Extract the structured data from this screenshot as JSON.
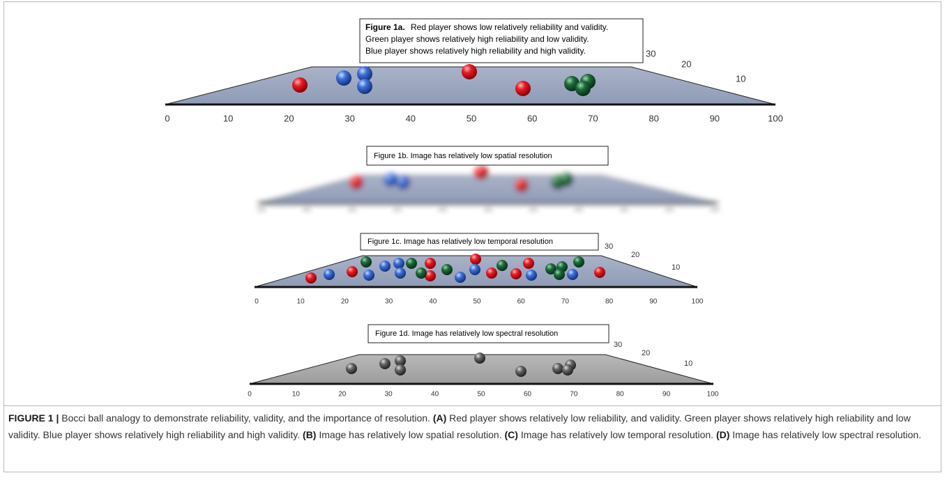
{
  "panels": [
    {
      "caption_title": "Figure 1a.",
      "caption_lines": [
        "Red player shows low relatively reliability and validity.",
        "Green player shows relatively high reliability and low validity.",
        "Blue player shows relatively high reliability and high validity."
      ],
      "x_labels": [
        "0",
        "10",
        "20",
        "30",
        "40",
        "50",
        "60",
        "70",
        "80",
        "90",
        "100"
      ],
      "depth_labels": [
        "30",
        "20",
        "10"
      ]
    },
    {
      "caption": "Figure 1b. Image has relatively low spatial resolution"
    },
    {
      "caption": "Figure 1c. Image has relatively low temporal resolution",
      "x_labels": [
        "0",
        "10",
        "20",
        "30",
        "40",
        "50",
        "60",
        "70",
        "80",
        "90",
        "100"
      ],
      "depth_labels": [
        "30",
        "20",
        "10"
      ]
    },
    {
      "caption": "Figure 1d. Image has relatively low spectral resolution",
      "x_labels": [
        "0",
        "10",
        "20",
        "30",
        "40",
        "50",
        "60",
        "70",
        "80",
        "90",
        "100"
      ],
      "depth_labels": [
        "30",
        "20",
        "10"
      ]
    }
  ],
  "figure_caption": [
    {
      "text": "FIGURE 1 |",
      "bold": true
    },
    {
      "text": " Bocci ball analogy to demonstrate reliability, validity, and the importance of resolution. "
    },
    {
      "text": "(A)",
      "bold": true
    },
    {
      "text": " Red player shows relatively low reliability, and validity. Green player shows relatively high reliability and low validity. Blue player shows relatively high reliability and high validity. "
    },
    {
      "text": "(B)",
      "bold": true
    },
    {
      "text": " Image has relatively low spatial resolution. "
    },
    {
      "text": "(C)",
      "bold": true
    },
    {
      "text": " Image has relatively low temporal resolution. "
    },
    {
      "text": "(D)",
      "bold": true
    },
    {
      "text": " Image has relatively low spectral resolution."
    }
  ]
}
